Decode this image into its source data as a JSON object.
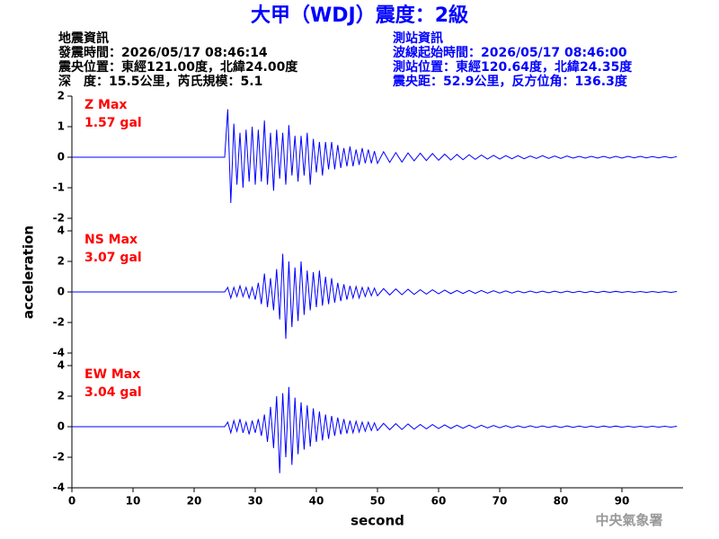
{
  "header": {
    "title": "大甲（WDJ）震度：2級",
    "left_info": [
      "地震資訊",
      "發震時間：2026/05/17 08:46:14",
      "震央位置：東經121.00度，北緯24.00度",
      "深　度：15.5公里，芮氏規模：5.1"
    ],
    "right_info": [
      "測站資訊",
      "波線起始時間：2026/05/17 08:46:00",
      "測站位置：東經120.64度，北緯24.35度",
      "震央距：52.9公里，反方位角：136.3度"
    ],
    "ylabel": "acceleration",
    "footer": "中央氣象署"
  },
  "chart_data": [
    {
      "type": "line",
      "max_label": "Z Max",
      "max_value_label": "1.57 gal",
      "x": [
        0,
        25,
        25.5,
        26,
        26.5,
        27,
        27.5,
        28,
        28.5,
        29,
        29.5,
        30,
        30.5,
        31,
        31.5,
        32,
        32.5,
        33,
        33.5,
        34,
        34.5,
        35,
        35.5,
        36,
        36.5,
        37,
        37.5,
        38,
        38.5,
        39,
        39.5,
        40,
        40.5,
        41,
        41.5,
        42,
        42.5,
        43,
        43.5,
        44,
        44.5,
        45,
        45.5,
        46,
        46.5,
        47,
        47.5,
        48,
        48.5,
        49,
        49.5,
        50,
        51,
        52,
        53,
        54,
        55,
        56,
        57,
        58,
        59,
        60,
        61,
        62,
        63,
        64,
        65,
        66,
        67,
        68,
        69,
        70,
        71,
        72,
        73,
        74,
        75,
        76,
        77,
        78,
        79,
        80,
        81,
        82,
        83,
        84,
        85,
        86,
        87,
        88,
        89,
        90,
        91,
        92,
        93,
        94,
        95,
        96,
        97,
        98,
        99
      ],
      "series": [
        {
          "color": "#0000ff",
          "values": [
            0,
            0,
            1.57,
            -1.5,
            1.1,
            -0.9,
            0.8,
            -1.0,
            0.9,
            -0.8,
            1.0,
            -0.9,
            0.9,
            -0.8,
            1.2,
            -0.9,
            0.8,
            -1.1,
            0.9,
            -0.7,
            0.8,
            -0.9,
            1.05,
            -0.6,
            0.7,
            -0.8,
            0.7,
            -0.6,
            0.8,
            -0.9,
            0.6,
            -0.5,
            0.5,
            -0.6,
            0.5,
            -0.4,
            0.5,
            -0.4,
            0.4,
            -0.35,
            0.3,
            -0.3,
            0.35,
            -0.3,
            0.25,
            -0.25,
            0.3,
            -0.2,
            0.25,
            -0.2,
            0.2,
            -0.2,
            0.18,
            -0.17,
            0.15,
            -0.16,
            0.14,
            -0.12,
            0.13,
            -0.11,
            0.12,
            -0.1,
            0.1,
            -0.09,
            0.09,
            -0.08,
            0.08,
            -0.07,
            0.07,
            -0.06,
            0.06,
            -0.06,
            0.05,
            -0.05,
            0.05,
            -0.05,
            0.04,
            -0.04,
            0.05,
            -0.04,
            0.04,
            -0.04,
            0.04,
            -0.03,
            0.03,
            -0.03,
            0.03,
            -0.03,
            0.03,
            -0.03,
            0.03,
            -0.03,
            0.03,
            -0.02,
            0.03,
            -0.02,
            0.02,
            -0.02,
            0.02,
            -0.02,
            0.02
          ]
        }
      ],
      "xlim": [
        0,
        100
      ],
      "ylim": [
        -2,
        2
      ],
      "yticks": [
        -2,
        -1,
        0,
        1,
        2
      ]
    },
    {
      "type": "line",
      "max_label": "NS Max",
      "max_value_label": "3.07 gal",
      "x": [
        0,
        25,
        25.5,
        26,
        26.5,
        27,
        27.5,
        28,
        28.5,
        29,
        29.5,
        30,
        30.5,
        31,
        31.5,
        32,
        32.5,
        33,
        33.5,
        34,
        34.5,
        35,
        35.5,
        36,
        36.5,
        37,
        37.5,
        38,
        38.5,
        39,
        39.5,
        40,
        40.5,
        41,
        41.5,
        42,
        42.5,
        43,
        43.5,
        44,
        44.5,
        45,
        45.5,
        46,
        46.5,
        47,
        47.5,
        48,
        48.5,
        49,
        49.5,
        50,
        51,
        52,
        53,
        54,
        55,
        56,
        57,
        58,
        59,
        60,
        61,
        62,
        63,
        64,
        65,
        66,
        67,
        68,
        69,
        70,
        71,
        72,
        73,
        74,
        75,
        76,
        77,
        78,
        79,
        80,
        81,
        82,
        83,
        84,
        85,
        86,
        87,
        88,
        89,
        90,
        91,
        92,
        93,
        94,
        95,
        96,
        97,
        98,
        99
      ],
      "series": [
        {
          "color": "#0000ff",
          "values": [
            0,
            0,
            0.3,
            -0.4,
            0.3,
            -0.3,
            0.4,
            -0.3,
            0.3,
            -0.4,
            0.3,
            -0.5,
            0.6,
            -0.8,
            1.2,
            -1.0,
            0.9,
            -1.2,
            1.5,
            -1.8,
            2.5,
            -3.07,
            2.0,
            -2.3,
            1.6,
            -1.9,
            2.0,
            -1.5,
            1.4,
            -1.2,
            1.3,
            -1.0,
            1.4,
            -0.9,
            1.0,
            -0.8,
            0.9,
            -0.7,
            0.6,
            -0.6,
            0.5,
            -0.5,
            0.4,
            -0.4,
            0.35,
            -0.4,
            0.3,
            -0.3,
            0.3,
            -0.25,
            0.25,
            -0.25,
            0.22,
            -0.2,
            0.2,
            -0.18,
            0.18,
            -0.16,
            0.15,
            -0.14,
            0.14,
            -0.12,
            0.12,
            -0.11,
            0.1,
            -0.1,
            0.1,
            -0.09,
            0.09,
            -0.08,
            0.08,
            -0.07,
            0.07,
            -0.07,
            0.06,
            -0.06,
            0.06,
            -0.05,
            0.05,
            -0.05,
            0.05,
            -0.05,
            0.05,
            -0.04,
            0.04,
            -0.04,
            0.04,
            -0.04,
            0.04,
            -0.03,
            0.04,
            -0.03,
            0.03,
            -0.03,
            0.03,
            -0.03,
            0.03,
            -0.03,
            0.03,
            -0.03,
            0.03
          ]
        }
      ],
      "xlim": [
        0,
        100
      ],
      "ylim": [
        -4,
        4
      ],
      "yticks": [
        -4,
        -2,
        0,
        2,
        4
      ]
    },
    {
      "type": "line",
      "max_label": "EW Max",
      "max_value_label": "3.04 gal",
      "xlabel": "second",
      "x": [
        0,
        25,
        25.5,
        26,
        26.5,
        27,
        27.5,
        28,
        28.5,
        29,
        29.5,
        30,
        30.5,
        31,
        31.5,
        32,
        32.5,
        33,
        33.5,
        34,
        34.5,
        35,
        35.5,
        36,
        36.5,
        37,
        37.5,
        38,
        38.5,
        39,
        39.5,
        40,
        40.5,
        41,
        41.5,
        42,
        42.5,
        43,
        43.5,
        44,
        44.5,
        45,
        45.5,
        46,
        46.5,
        47,
        47.5,
        48,
        48.5,
        49,
        49.5,
        50,
        51,
        52,
        53,
        54,
        55,
        56,
        57,
        58,
        59,
        60,
        61,
        62,
        63,
        64,
        65,
        66,
        67,
        68,
        69,
        70,
        71,
        72,
        73,
        74,
        75,
        76,
        77,
        78,
        79,
        80,
        81,
        82,
        83,
        84,
        85,
        86,
        87,
        88,
        89,
        90,
        91,
        92,
        93,
        94,
        95,
        96,
        97,
        98,
        99
      ],
      "series": [
        {
          "color": "#0000ff",
          "values": [
            0,
            0,
            0.3,
            -0.4,
            0.4,
            -0.3,
            0.5,
            -0.4,
            0.3,
            -0.5,
            0.4,
            -0.4,
            0.5,
            -0.6,
            0.8,
            -1.0,
            1.3,
            -1.4,
            2.0,
            -3.04,
            2.2,
            -2.0,
            2.6,
            -2.5,
            1.9,
            -1.8,
            1.6,
            -1.5,
            1.4,
            -1.3,
            1.2,
            -1.0,
            1.0,
            -0.9,
            0.8,
            -0.8,
            0.7,
            -0.6,
            0.6,
            -0.5,
            0.5,
            -0.45,
            0.4,
            -0.4,
            0.35,
            -0.35,
            0.3,
            -0.3,
            0.3,
            -0.25,
            0.25,
            -0.25,
            0.22,
            -0.2,
            0.2,
            -0.18,
            0.18,
            -0.16,
            0.15,
            -0.14,
            0.14,
            -0.12,
            0.12,
            -0.11,
            0.1,
            -0.1,
            0.1,
            -0.09,
            0.09,
            -0.08,
            0.08,
            -0.07,
            0.07,
            -0.07,
            0.06,
            -0.06,
            0.06,
            -0.05,
            0.05,
            -0.05,
            0.05,
            -0.05,
            0.05,
            -0.04,
            0.04,
            -0.04,
            0.04,
            -0.04,
            0.04,
            -0.03,
            0.04,
            -0.03,
            0.03,
            -0.03,
            0.03,
            -0.03,
            0.03,
            -0.03,
            0.03,
            -0.03,
            0.03
          ]
        }
      ],
      "xlim": [
        0,
        100
      ],
      "ylim": [
        -4,
        4
      ],
      "yticks": [
        -4,
        -2,
        0,
        2,
        4
      ],
      "xticks": [
        0,
        10,
        20,
        30,
        40,
        50,
        60,
        70,
        80,
        90
      ]
    }
  ]
}
